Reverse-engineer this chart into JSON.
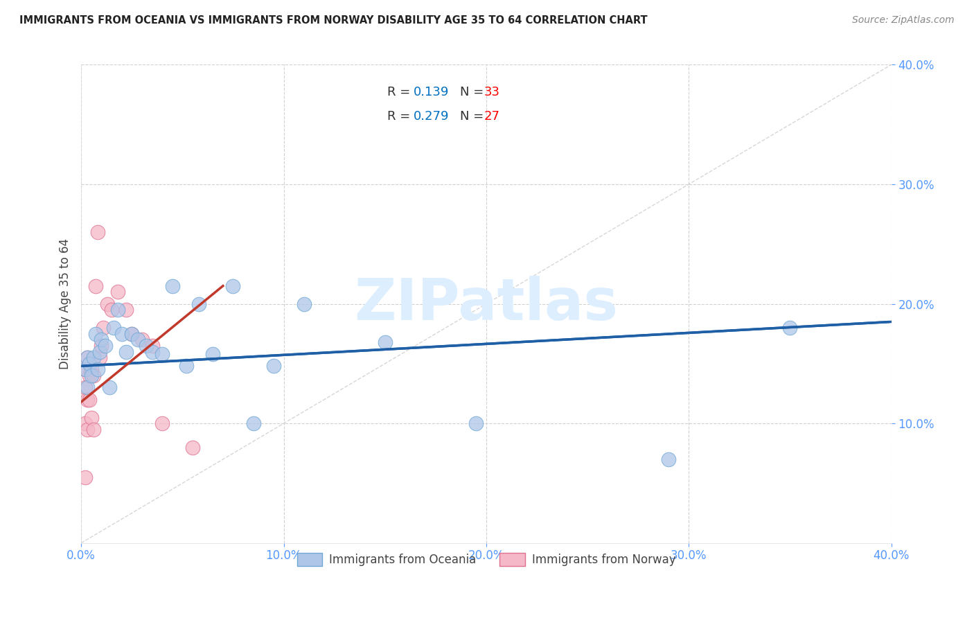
{
  "title": "IMMIGRANTS FROM OCEANIA VS IMMIGRANTS FROM NORWAY DISABILITY AGE 35 TO 64 CORRELATION CHART",
  "source": "Source: ZipAtlas.com",
  "ylabel": "Disability Age 35 to 64",
  "xlim": [
    0.0,
    0.4
  ],
  "ylim": [
    0.0,
    0.4
  ],
  "xticks": [
    0.0,
    0.1,
    0.2,
    0.3,
    0.4
  ],
  "yticks": [
    0.1,
    0.2,
    0.3,
    0.4
  ],
  "series1_label": "Immigrants from Oceania",
  "series1_color": "#aec6e8",
  "series1_edge_color": "#6fa8d6",
  "series1_R": "0.139",
  "series1_N": "33",
  "series1_trend_color": "#1f5fa6",
  "series2_label": "Immigrants from Norway",
  "series2_color": "#f4b8c8",
  "series2_edge_color": "#e07090",
  "series2_R": "0.279",
  "series2_N": "27",
  "series2_trend_color": "#c0392b",
  "rv_color": "#0070c0",
  "n_color": "#ff0000",
  "background_color": "#ffffff",
  "grid_color": "#cccccc",
  "watermark_text": "ZIPatlas",
  "watermark_color": "#ddeeff",
  "tick_color": "#5599ff",
  "scatter1_x": [
    0.002,
    0.003,
    0.003,
    0.004,
    0.005,
    0.006,
    0.007,
    0.008,
    0.009,
    0.01,
    0.012,
    0.014,
    0.016,
    0.018,
    0.02,
    0.022,
    0.025,
    0.028,
    0.032,
    0.035,
    0.04,
    0.045,
    0.052,
    0.058,
    0.065,
    0.075,
    0.085,
    0.095,
    0.11,
    0.15,
    0.195,
    0.29,
    0.35
  ],
  "scatter1_y": [
    0.145,
    0.155,
    0.13,
    0.15,
    0.14,
    0.155,
    0.175,
    0.145,
    0.16,
    0.17,
    0.165,
    0.13,
    0.18,
    0.195,
    0.175,
    0.16,
    0.175,
    0.17,
    0.165,
    0.16,
    0.158,
    0.215,
    0.148,
    0.2,
    0.158,
    0.215,
    0.1,
    0.148,
    0.2,
    0.168,
    0.1,
    0.07,
    0.18
  ],
  "scatter2_x": [
    0.002,
    0.002,
    0.002,
    0.003,
    0.003,
    0.003,
    0.004,
    0.004,
    0.005,
    0.005,
    0.006,
    0.006,
    0.007,
    0.008,
    0.009,
    0.01,
    0.011,
    0.013,
    0.015,
    0.018,
    0.022,
    0.025,
    0.03,
    0.035,
    0.04,
    0.055,
    0.002
  ],
  "scatter2_y": [
    0.145,
    0.13,
    0.1,
    0.155,
    0.12,
    0.095,
    0.14,
    0.12,
    0.145,
    0.105,
    0.14,
    0.095,
    0.215,
    0.26,
    0.155,
    0.165,
    0.18,
    0.2,
    0.195,
    0.21,
    0.195,
    0.175,
    0.17,
    0.165,
    0.1,
    0.08,
    0.055
  ],
  "trend1_x0": 0.0,
  "trend1_y0": 0.148,
  "trend1_x1": 0.4,
  "trend1_y1": 0.185,
  "trend2_x0": 0.0,
  "trend2_y0": 0.118,
  "trend2_x1": 0.07,
  "trend2_y1": 0.215
}
